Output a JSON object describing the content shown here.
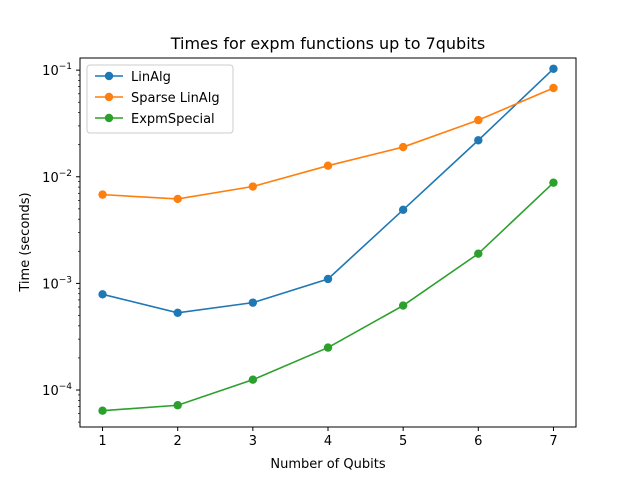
{
  "chart_data": {
    "type": "line",
    "title": "Times for expm functions up to 7qubits",
    "xlabel": "Number of Qubits",
    "ylabel": "Time (seconds)",
    "xscale": "linear",
    "yscale": "log",
    "x": [
      1,
      2,
      3,
      4,
      5,
      6,
      7
    ],
    "xticks": [
      "1",
      "2",
      "3",
      "4",
      "5",
      "6",
      "7"
    ],
    "ylim": [
      4.5e-05,
      0.13
    ],
    "yticks": [
      {
        "value": 0.0001,
        "base": "10",
        "exp": "−4"
      },
      {
        "value": 0.001,
        "base": "10",
        "exp": "−3"
      },
      {
        "value": 0.01,
        "base": "10",
        "exp": "−2"
      },
      {
        "value": 0.1,
        "base": "10",
        "exp": "−1"
      }
    ],
    "grid": false,
    "legend_position": "top-left",
    "series": [
      {
        "name": "LinAlg",
        "color": "#1f77b4",
        "values": [
          0.00079,
          0.00053,
          0.00066,
          0.0011,
          0.0049,
          0.022,
          0.103
        ]
      },
      {
        "name": "Sparse LinAlg",
        "color": "#ff7f0e",
        "values": [
          0.0068,
          0.0062,
          0.0081,
          0.0127,
          0.019,
          0.034,
          0.068
        ]
      },
      {
        "name": "ExpmSpecial",
        "color": "#2ca02c",
        "values": [
          6.4e-05,
          7.2e-05,
          0.000125,
          0.00025,
          0.00062,
          0.0019,
          0.0088
        ]
      }
    ]
  }
}
